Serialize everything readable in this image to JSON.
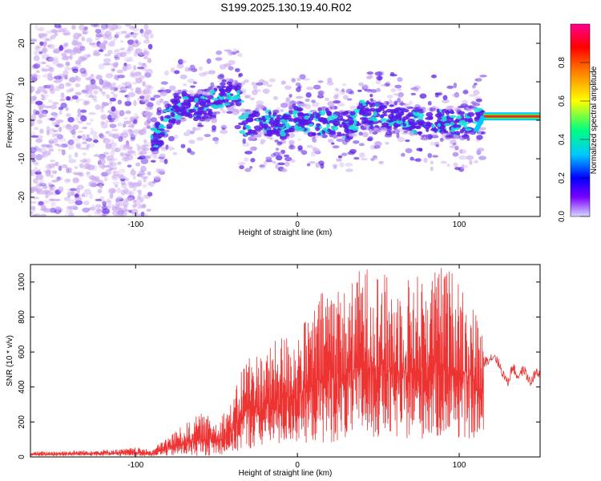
{
  "title": "S199.2025.130.19.40.R02",
  "colors": {
    "snr_line": "#ee3333",
    "spectrogram_low": "#c9a8f0",
    "spectrogram_mid": "#5a19e6",
    "spectrogram_high": "#18e0d8",
    "colorbar": [
      "#c8c8ff",
      "#7a00ff",
      "#0000ff",
      "#00c8ff",
      "#00ff80",
      "#ffff00",
      "#ff8000",
      "#ff0000",
      "#ff00a0"
    ]
  },
  "chart_data": [
    {
      "type": "heatmap",
      "name": "spectrogram",
      "xlabel": "Height of straight line (km)",
      "ylabel": "Frequency (Hz)",
      "xlim": [
        -165,
        150
      ],
      "ylim": [
        -25,
        25
      ],
      "xticks": [
        -100,
        0,
        100
      ],
      "yticks": [
        20,
        10,
        0,
        -10,
        -20
      ],
      "colorbar": {
        "label": "Normalized spectral amplitude",
        "range": [
          0.0,
          1.0
        ],
        "ticks": [
          0.0,
          0.2,
          0.4,
          0.6,
          0.8
        ]
      },
      "ridge": [
        {
          "x": -90,
          "y": -6
        },
        {
          "x": -85,
          "y": -3
        },
        {
          "x": -80,
          "y": 1
        },
        {
          "x": -75,
          "y": 3
        },
        {
          "x": -70,
          "y": 4
        },
        {
          "x": -62,
          "y": 3
        },
        {
          "x": -55,
          "y": 4
        },
        {
          "x": -48,
          "y": 6
        },
        {
          "x": -40,
          "y": 7
        },
        {
          "x": -35,
          "y": 5
        },
        {
          "x": -40,
          "y": -4
        },
        {
          "x": -30,
          "y": -1
        },
        {
          "x": -20,
          "y": 0
        },
        {
          "x": -10,
          "y": -2
        },
        {
          "x": 0,
          "y": 1
        },
        {
          "x": 10,
          "y": -1
        },
        {
          "x": 20,
          "y": 0
        },
        {
          "x": 30,
          "y": -2
        },
        {
          "x": 40,
          "y": 2
        },
        {
          "x": 50,
          "y": 1
        },
        {
          "x": 60,
          "y": 1
        },
        {
          "x": 70,
          "y": 0
        },
        {
          "x": 80,
          "y": -1
        },
        {
          "x": 90,
          "y": 0
        },
        {
          "x": 100,
          "y": -1
        },
        {
          "x": 110,
          "y": 0
        },
        {
          "x": 115,
          "y": 1
        }
      ],
      "tone": {
        "x_start": 115,
        "x_end": 150,
        "y": 1,
        "amplitude": 0.95
      }
    },
    {
      "type": "line",
      "name": "snr",
      "xlabel": "Height of straight line (km)",
      "ylabel": "SNR (10 * v/v)",
      "xlim": [
        -165,
        150
      ],
      "ylim": [
        0,
        1100
      ],
      "xticks": [
        -100,
        0,
        100
      ],
      "yticks": [
        0,
        200,
        400,
        600,
        800,
        1000
      ],
      "envelope": [
        {
          "x": -165,
          "lo": 5,
          "hi": 30
        },
        {
          "x": -110,
          "lo": 5,
          "hi": 45
        },
        {
          "x": -100,
          "lo": 5,
          "hi": 55
        },
        {
          "x": -90,
          "lo": 5,
          "hi": 40
        },
        {
          "x": -80,
          "lo": 5,
          "hi": 120
        },
        {
          "x": -60,
          "lo": 5,
          "hi": 250
        },
        {
          "x": -50,
          "lo": 10,
          "hi": 220
        },
        {
          "x": -40,
          "lo": 20,
          "hi": 320
        },
        {
          "x": -32,
          "lo": 40,
          "hi": 600
        },
        {
          "x": -20,
          "lo": 60,
          "hi": 600
        },
        {
          "x": -10,
          "lo": 60,
          "hi": 700
        },
        {
          "x": 0,
          "lo": 80,
          "hi": 720
        },
        {
          "x": 10,
          "lo": 80,
          "hi": 850
        },
        {
          "x": 20,
          "lo": 80,
          "hi": 1050
        },
        {
          "x": 30,
          "lo": 90,
          "hi": 950
        },
        {
          "x": 40,
          "lo": 100,
          "hi": 1100
        },
        {
          "x": 50,
          "lo": 100,
          "hi": 1080
        },
        {
          "x": 60,
          "lo": 100,
          "hi": 1000
        },
        {
          "x": 70,
          "lo": 100,
          "hi": 1050
        },
        {
          "x": 80,
          "lo": 100,
          "hi": 1050
        },
        {
          "x": 90,
          "lo": 100,
          "hi": 1100
        },
        {
          "x": 100,
          "lo": 100,
          "hi": 1050
        },
        {
          "x": 108,
          "lo": 100,
          "hi": 900
        },
        {
          "x": 115,
          "lo": 100,
          "hi": 700
        }
      ],
      "tail": [
        {
          "x": 115,
          "y": 540
        },
        {
          "x": 118,
          "y": 560
        },
        {
          "x": 122,
          "y": 580
        },
        {
          "x": 126,
          "y": 500
        },
        {
          "x": 130,
          "y": 420
        },
        {
          "x": 133,
          "y": 520
        },
        {
          "x": 136,
          "y": 460
        },
        {
          "x": 140,
          "y": 500
        },
        {
          "x": 144,
          "y": 420
        },
        {
          "x": 147,
          "y": 480
        },
        {
          "x": 150,
          "y": 470
        }
      ]
    }
  ]
}
